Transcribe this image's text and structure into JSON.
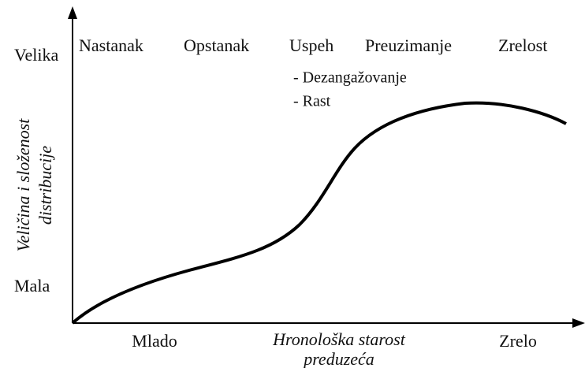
{
  "y_axis": {
    "title": [
      "Veličina i složenost",
      "distribucije"
    ],
    "high": "Velika",
    "low": "Mala"
  },
  "x_axis": {
    "title": [
      "Hronološka starost",
      "preduzeća"
    ],
    "low": "Mlado",
    "high": "Zrelo"
  },
  "stages": [
    "Nastanak",
    "Opstanak",
    "Uspeh",
    "Preuzimanje",
    "Zrelost"
  ],
  "sub_items": [
    "- Dezangažovanje",
    "- Rast"
  ]
}
